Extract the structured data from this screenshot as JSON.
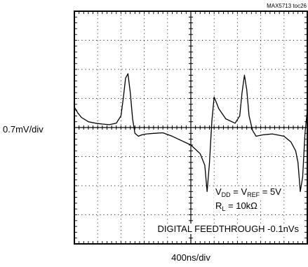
{
  "chart_data": {
    "type": "line",
    "figure_id": "MAX5713 toc26",
    "xlabel": "400ns/div",
    "ylabel": "0.7mV/div",
    "x_divisions": 10,
    "y_divisions": 8,
    "x_unit_per_div": "400ns",
    "y_unit_per_div": "0.7mV",
    "xlim": [
      0,
      10
    ],
    "ylim": [
      -4,
      4
    ],
    "grid": "dotted",
    "annotations": {
      "supply": {
        "v1": "V",
        "s1": "DD",
        "v2": " = V",
        "s2": "REF",
        "tail": " = 5V"
      },
      "load": {
        "v1": "R",
        "s1": "L",
        "tail": " = 10kΩ"
      },
      "result": "DIGITAL FEEDTHROUGH -0.1nVs"
    },
    "series": [
      {
        "x": [
          0,
          0.15,
          0.3,
          0.6,
          0.9,
          1.2,
          1.5,
          1.8,
          2.0,
          2.1,
          2.2,
          2.3,
          2.4,
          2.5,
          2.6,
          2.75,
          2.9,
          3.1,
          3.4,
          3.8,
          4.2,
          4.6,
          5.0,
          5.4,
          5.6,
          5.7,
          5.8,
          5.9,
          6.0,
          6.2,
          6.5,
          6.9,
          7.1,
          7.2,
          7.3,
          7.4,
          7.5,
          7.65,
          7.8,
          8.1,
          8.5,
          9.0,
          9.3,
          9.5,
          9.6,
          9.7,
          9.8,
          9.9,
          10
        ],
        "y": [
          0.7,
          0.5,
          0.35,
          0.2,
          0.15,
          0.12,
          0.1,
          0.15,
          0.4,
          1.0,
          1.7,
          1.85,
          1.2,
          0.3,
          -0.2,
          -0.3,
          -0.25,
          -0.22,
          -0.2,
          -0.18,
          -0.3,
          -0.45,
          -0.6,
          -0.9,
          -1.3,
          -2.2,
          -1.2,
          0.2,
          1.05,
          0.65,
          0.3,
          0.15,
          0.4,
          1.2,
          1.8,
          1.3,
          0.4,
          -0.1,
          -0.3,
          -0.25,
          -0.22,
          -0.3,
          -0.5,
          -0.8,
          -1.2,
          -2.2,
          -1.7,
          -0.2,
          0.6
        ]
      }
    ]
  }
}
